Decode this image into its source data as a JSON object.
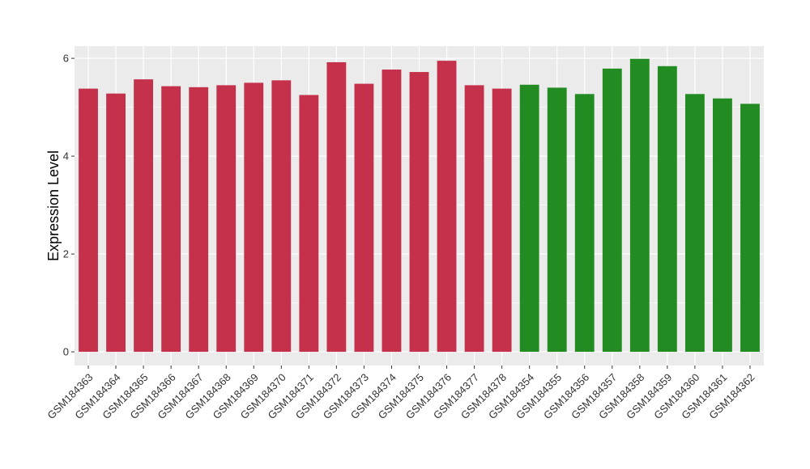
{
  "chart_data": {
    "type": "bar",
    "title": "",
    "xlabel": "",
    "ylabel": "Expression Level",
    "ylim": [
      0,
      6.25
    ],
    "yticks": [
      0,
      2,
      4,
      6
    ],
    "grid": true,
    "legend": "none",
    "colors": {
      "group_a": "#c5304a",
      "group_b": "#228b22",
      "panel_bg": "#ebebeb",
      "grid": "#ffffff"
    },
    "categories": [
      "GSM184363",
      "GSM184364",
      "GSM184365",
      "GSM184366",
      "GSM184367",
      "GSM184368",
      "GSM184369",
      "GSM184370",
      "GSM184371",
      "GSM184372",
      "GSM184373",
      "GSM184374",
      "GSM184375",
      "GSM184376",
      "GSM184377",
      "GSM184378",
      "GSM184354",
      "GSM184355",
      "GSM184356",
      "GSM184357",
      "GSM184358",
      "GSM184359",
      "GSM184360",
      "GSM184361",
      "GSM184362"
    ],
    "values": [
      5.38,
      5.28,
      5.57,
      5.43,
      5.41,
      5.45,
      5.5,
      5.55,
      5.25,
      5.92,
      5.48,
      5.77,
      5.72,
      5.95,
      5.45,
      5.38,
      5.46,
      5.4,
      5.27,
      5.79,
      5.99,
      5.84,
      5.27,
      5.18,
      5.07
    ],
    "groups": [
      "a",
      "a",
      "a",
      "a",
      "a",
      "a",
      "a",
      "a",
      "a",
      "a",
      "a",
      "a",
      "a",
      "a",
      "a",
      "a",
      "b",
      "b",
      "b",
      "b",
      "b",
      "b",
      "b",
      "b",
      "b"
    ]
  }
}
